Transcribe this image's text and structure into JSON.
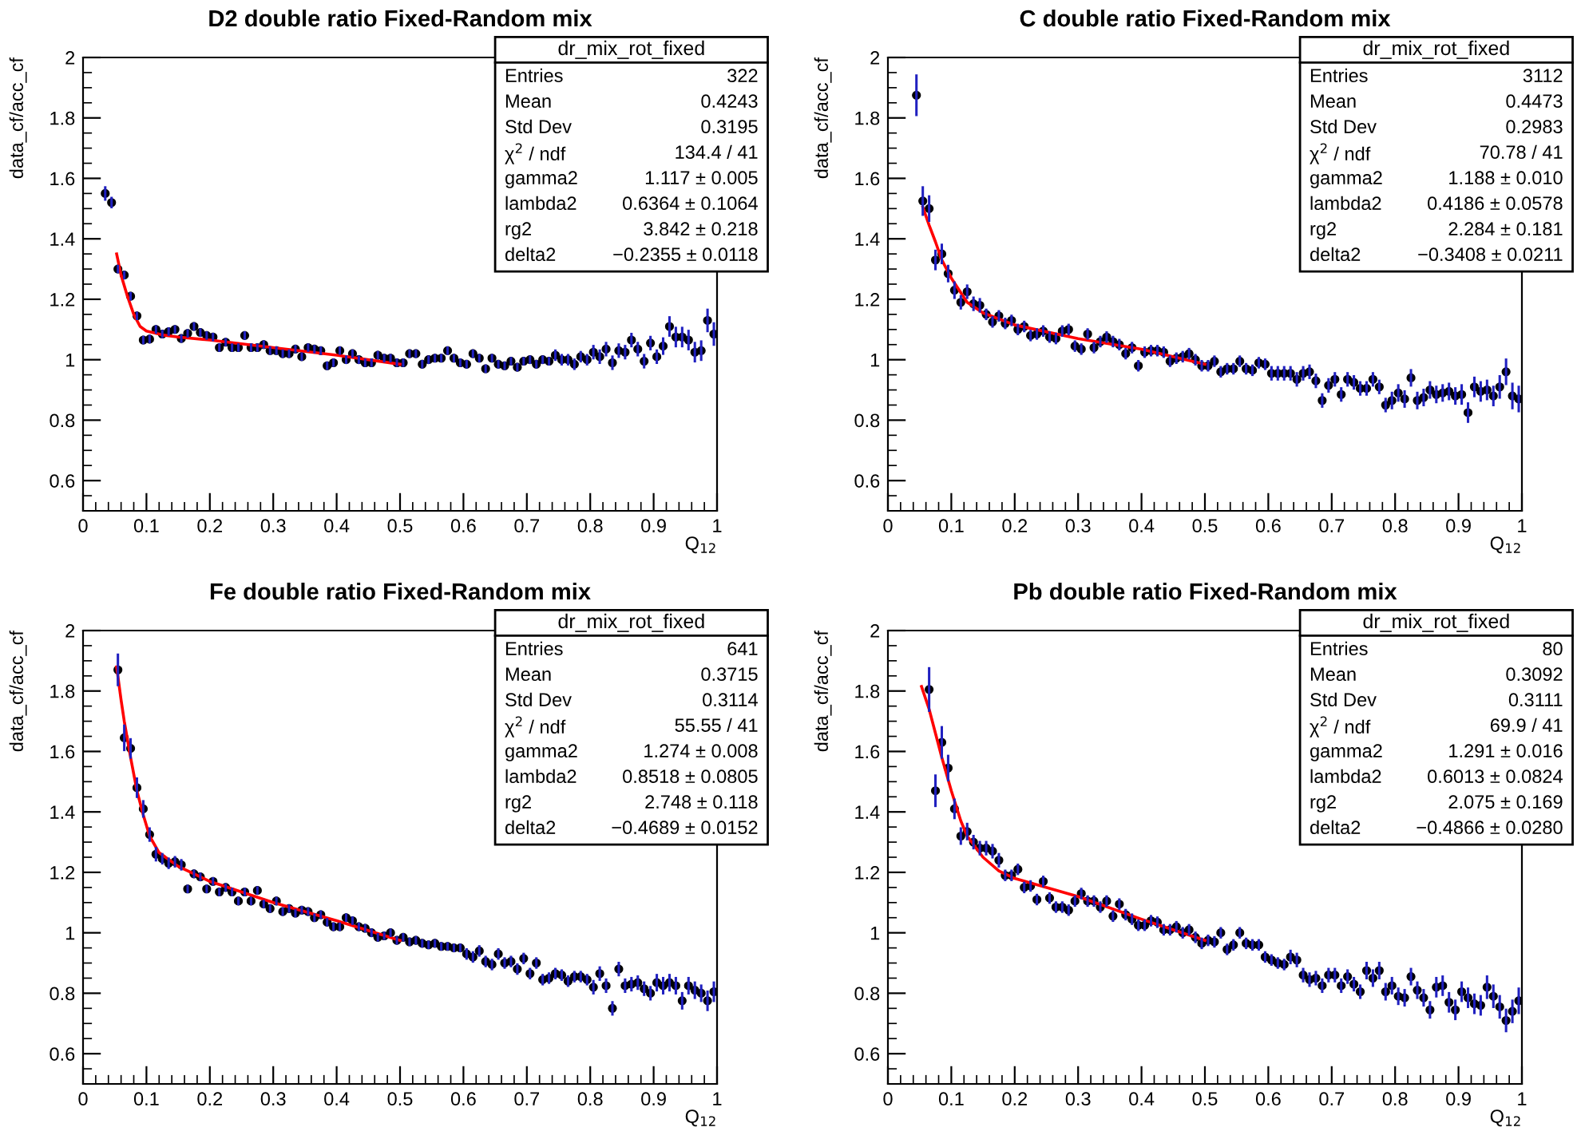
{
  "chart_data": [
    {
      "type": "scatter",
      "title": "D2 double ratio Fixed-Random mix",
      "xlabel": "Q$_{12}$",
      "ylabel": "data_cf/acc_cf",
      "xlim": [
        0,
        1
      ],
      "ylim": [
        0.5,
        2
      ],
      "xticks": [
        0,
        0.1,
        0.2,
        0.3,
        0.4,
        0.5,
        0.6,
        0.7,
        0.8,
        0.9,
        1
      ],
      "yticks": [
        0.6,
        0.8,
        1,
        1.2,
        1.4,
        1.6,
        1.8,
        2
      ],
      "annotations": [
        "dr_mix_rot_fixed",
        "Entries",
        "322",
        "Mean",
        "0.4243",
        "Std Dev",
        "0.3195",
        "χ$^{2}$ / ndf",
        "134.4 / 41",
        "gamma2",
        "1.117 ± 0.005",
        "lambda2",
        "0.6364 ± 0.1064",
        "rg2",
        "3.842 ± 0.218",
        "delta2",
        "−0.2355 ± 0.0118"
      ],
      "series": [
        {
          "type": "scatter",
          "marker": "circle",
          "color": "#000000",
          "x": [
            0.035,
            0.045,
            0.055,
            0.065,
            0.075,
            0.085,
            0.095,
            0.105,
            0.115,
            0.125,
            0.135,
            0.145,
            0.155,
            0.165,
            0.175,
            0.185,
            0.195,
            0.205,
            0.215,
            0.225,
            0.235,
            0.245,
            0.255,
            0.265,
            0.275,
            0.285,
            0.295,
            0.305,
            0.315,
            0.325,
            0.335,
            0.345,
            0.355,
            0.365,
            0.375,
            0.385,
            0.395,
            0.405,
            0.415,
            0.425,
            0.435,
            0.445,
            0.455,
            0.465,
            0.475,
            0.485,
            0.495,
            0.505,
            0.515,
            0.525,
            0.535,
            0.545,
            0.555,
            0.565,
            0.575,
            0.585,
            0.595,
            0.605,
            0.615,
            0.625,
            0.635,
            0.645,
            0.655,
            0.665,
            0.675,
            0.685,
            0.695,
            0.705,
            0.715,
            0.725,
            0.735,
            0.745,
            0.755,
            0.765,
            0.775,
            0.785,
            0.795,
            0.805,
            0.815,
            0.825,
            0.835,
            0.845,
            0.855,
            0.865,
            0.875,
            0.885,
            0.895,
            0.905,
            0.915,
            0.925,
            0.935,
            0.945,
            0.955,
            0.965,
            0.975,
            0.985,
            0.995
          ],
          "values": [
            1.55,
            1.52,
            1.3,
            1.28,
            1.21,
            1.145,
            1.065,
            1.068,
            1.1,
            1.085,
            1.093,
            1.1,
            1.07,
            1.087,
            1.11,
            1.09,
            1.08,
            1.075,
            1.04,
            1.058,
            1.04,
            1.04,
            1.08,
            1.04,
            1.04,
            1.05,
            1.03,
            1.03,
            1.02,
            1.02,
            1.035,
            1.01,
            1.04,
            1.035,
            1.03,
            0.98,
            0.99,
            1.03,
            1.0,
            1.02,
            1.0,
            0.99,
            0.99,
            1.015,
            1.005,
            1.005,
            0.99,
            0.99,
            1.02,
            1.02,
            0.985,
            1.0,
            1.005,
            1.005,
            1.03,
            1.005,
            0.99,
            0.985,
            1.02,
            1.005,
            0.97,
            1.005,
            0.985,
            0.98,
            0.995,
            0.975,
            0.995,
            1.0,
            0.985,
            1.0,
            0.995,
            1.015,
            1.0,
            1.0,
            0.985,
            1.01,
            1.0,
            1.025,
            1.01,
            1.035,
            0.99,
            1.03,
            1.025,
            1.065,
            1.035,
            0.995,
            1.055,
            1.01,
            1.045,
            1.11,
            1.075,
            1.075,
            1.065,
            1.025,
            1.03,
            1.13,
            1.085
          ],
          "errors": [
            0.02,
            0.015,
            0.01,
            0.01,
            0.01,
            0.01,
            0.01,
            0.01,
            0.01,
            0.01,
            0.01,
            0.01,
            0.01,
            0.01,
            0.01,
            0.01,
            0.01,
            0.01,
            0.01,
            0.01,
            0.01,
            0.01,
            0.01,
            0.01,
            0.01,
            0.01,
            0.01,
            0.01,
            0.01,
            0.01,
            0.01,
            0.01,
            0.01,
            0.01,
            0.01,
            0.01,
            0.01,
            0.01,
            0.01,
            0.01,
            0.01,
            0.01,
            0.01,
            0.01,
            0.01,
            0.01,
            0.01,
            0.01,
            0.01,
            0.01,
            0.01,
            0.01,
            0.01,
            0.01,
            0.01,
            0.01,
            0.01,
            0.01,
            0.01,
            0.01,
            0.01,
            0.01,
            0.01,
            0.01,
            0.01,
            0.01,
            0.01,
            0.01,
            0.01,
            0.01,
            0.01,
            0.015,
            0.015,
            0.015,
            0.015,
            0.015,
            0.015,
            0.02,
            0.02,
            0.02,
            0.02,
            0.02,
            0.02,
            0.02,
            0.02,
            0.02,
            0.02,
            0.02,
            0.025,
            0.03,
            0.03,
            0.03,
            0.03,
            0.03,
            0.03,
            0.035,
            0.035
          ]
        },
        {
          "type": "line",
          "color": "#ff0000",
          "x": [
            0.053,
            0.06,
            0.07,
            0.08,
            0.09,
            0.1,
            0.125,
            0.15,
            0.2,
            0.3,
            0.4,
            0.5
          ],
          "values": [
            1.35,
            1.28,
            1.21,
            1.15,
            1.11,
            1.095,
            1.082,
            1.075,
            1.065,
            1.04,
            1.015,
            0.985
          ]
        }
      ]
    },
    {
      "type": "scatter",
      "title": "C double ratio Fixed-Random mix",
      "xlabel": "Q$_{12}$",
      "ylabel": "data_cf/acc_cf",
      "xlim": [
        0,
        1
      ],
      "ylim": [
        0.5,
        2
      ],
      "xticks": [
        0,
        0.1,
        0.2,
        0.3,
        0.4,
        0.5,
        0.6,
        0.7,
        0.8,
        0.9,
        1
      ],
      "yticks": [
        0.6,
        0.8,
        1,
        1.2,
        1.4,
        1.6,
        1.8,
        2
      ],
      "annotations": [
        "dr_mix_rot_fixed",
        "Entries",
        "3112",
        "Mean",
        "0.4473",
        "Std Dev",
        "0.2983",
        "χ$^{2}$ / ndf",
        "70.78 / 41",
        "gamma2",
        "1.188 ± 0.010",
        "lambda2",
        "0.4186 ± 0.0578",
        "rg2",
        "2.284 ± 0.181",
        "delta2",
        "−0.3408 ± 0.0211"
      ],
      "series": [
        {
          "type": "scatter",
          "marker": "circle",
          "color": "#000000",
          "x": [
            0.045,
            0.055,
            0.065,
            0.075,
            0.085,
            0.095,
            0.105,
            0.115,
            0.125,
            0.135,
            0.145,
            0.155,
            0.165,
            0.175,
            0.185,
            0.195,
            0.205,
            0.215,
            0.225,
            0.235,
            0.245,
            0.255,
            0.265,
            0.275,
            0.285,
            0.295,
            0.305,
            0.315,
            0.325,
            0.335,
            0.345,
            0.355,
            0.365,
            0.375,
            0.385,
            0.395,
            0.405,
            0.415,
            0.425,
            0.435,
            0.445,
            0.455,
            0.465,
            0.475,
            0.485,
            0.495,
            0.505,
            0.515,
            0.525,
            0.535,
            0.545,
            0.555,
            0.565,
            0.575,
            0.585,
            0.595,
            0.605,
            0.615,
            0.625,
            0.635,
            0.645,
            0.655,
            0.665,
            0.675,
            0.685,
            0.695,
            0.705,
            0.715,
            0.725,
            0.735,
            0.745,
            0.755,
            0.765,
            0.775,
            0.785,
            0.795,
            0.805,
            0.815,
            0.825,
            0.835,
            0.845,
            0.855,
            0.865,
            0.875,
            0.885,
            0.895,
            0.905,
            0.915,
            0.925,
            0.935,
            0.945,
            0.955,
            0.965,
            0.975,
            0.985,
            0.995
          ],
          "values": [
            1.875,
            1.525,
            1.5,
            1.33,
            1.35,
            1.285,
            1.23,
            1.19,
            1.225,
            1.185,
            1.18,
            1.15,
            1.125,
            1.145,
            1.12,
            1.13,
            1.1,
            1.11,
            1.08,
            1.085,
            1.095,
            1.075,
            1.07,
            1.095,
            1.1,
            1.045,
            1.035,
            1.085,
            1.04,
            1.06,
            1.075,
            1.06,
            1.05,
            1.02,
            1.04,
            0.98,
            1.025,
            1.03,
            1.03,
            1.025,
            0.995,
            1.005,
            1.01,
            1.02,
            1.0,
            0.98,
            0.98,
            0.995,
            0.96,
            0.97,
            0.97,
            0.995,
            0.97,
            0.965,
            0.99,
            0.985,
            0.955,
            0.955,
            0.955,
            0.955,
            0.935,
            0.955,
            0.96,
            0.93,
            0.865,
            0.915,
            0.935,
            0.885,
            0.935,
            0.925,
            0.905,
            0.905,
            0.935,
            0.91,
            0.85,
            0.865,
            0.89,
            0.87,
            0.94,
            0.865,
            0.875,
            0.9,
            0.885,
            0.89,
            0.895,
            0.88,
            0.885,
            0.825,
            0.91,
            0.895,
            0.9,
            0.88,
            0.91,
            0.96,
            0.88,
            0.87
          ],
          "errors": [
            0.065,
            0.045,
            0.04,
            0.03,
            0.03,
            0.025,
            0.025,
            0.02,
            0.02,
            0.02,
            0.02,
            0.015,
            0.015,
            0.015,
            0.015,
            0.015,
            0.015,
            0.015,
            0.015,
            0.015,
            0.015,
            0.015,
            0.015,
            0.015,
            0.015,
            0.015,
            0.015,
            0.015,
            0.015,
            0.015,
            0.015,
            0.015,
            0.015,
            0.015,
            0.015,
            0.015,
            0.015,
            0.015,
            0.015,
            0.015,
            0.015,
            0.015,
            0.015,
            0.015,
            0.015,
            0.015,
            0.015,
            0.015,
            0.015,
            0.015,
            0.015,
            0.015,
            0.015,
            0.015,
            0.015,
            0.015,
            0.02,
            0.02,
            0.02,
            0.02,
            0.02,
            0.02,
            0.02,
            0.02,
            0.02,
            0.02,
            0.02,
            0.02,
            0.02,
            0.02,
            0.02,
            0.02,
            0.02,
            0.02,
            0.02,
            0.025,
            0.025,
            0.025,
            0.025,
            0.025,
            0.025,
            0.025,
            0.025,
            0.025,
            0.025,
            0.025,
            0.03,
            0.03,
            0.03,
            0.03,
            0.03,
            0.03,
            0.035,
            0.04,
            0.04,
            0.04
          ]
        },
        {
          "type": "line",
          "color": "#ff0000",
          "x": [
            0.055,
            0.065,
            0.075,
            0.085,
            0.1,
            0.125,
            0.15,
            0.2,
            0.3,
            0.4,
            0.5
          ],
          "values": [
            1.505,
            1.445,
            1.39,
            1.33,
            1.27,
            1.19,
            1.155,
            1.115,
            1.07,
            1.035,
            0.985
          ]
        }
      ]
    },
    {
      "type": "scatter",
      "title": "Fe double ratio Fixed-Random mix",
      "xlabel": "Q$_{12}$",
      "ylabel": "data_cf/acc_cf",
      "xlim": [
        0,
        1
      ],
      "ylim": [
        0.5,
        2
      ],
      "xticks": [
        0,
        0.1,
        0.2,
        0.3,
        0.4,
        0.5,
        0.6,
        0.7,
        0.8,
        0.9,
        1
      ],
      "yticks": [
        0.6,
        0.8,
        1,
        1.2,
        1.4,
        1.6,
        1.8,
        2
      ],
      "annotations": [
        "dr_mix_rot_fixed",
        "Entries",
        "641",
        "Mean",
        "0.3715",
        "Std Dev",
        "0.3114",
        "χ$^{2}$ / ndf",
        "55.55 / 41",
        "gamma2",
        "1.274 ± 0.008",
        "lambda2",
        "0.8518 ± 0.0805",
        "rg2",
        "2.748 ± 0.118",
        "delta2",
        "−0.4689 ± 0.0152"
      ],
      "series": [
        {
          "type": "scatter",
          "marker": "circle",
          "color": "#000000",
          "x": [
            0.055,
            0.065,
            0.075,
            0.085,
            0.095,
            0.105,
            0.115,
            0.125,
            0.135,
            0.145,
            0.155,
            0.165,
            0.175,
            0.185,
            0.195,
            0.205,
            0.215,
            0.225,
            0.235,
            0.245,
            0.255,
            0.265,
            0.275,
            0.285,
            0.295,
            0.305,
            0.315,
            0.325,
            0.335,
            0.345,
            0.355,
            0.365,
            0.375,
            0.385,
            0.395,
            0.405,
            0.415,
            0.425,
            0.435,
            0.445,
            0.455,
            0.465,
            0.475,
            0.485,
            0.495,
            0.505,
            0.515,
            0.525,
            0.535,
            0.545,
            0.555,
            0.565,
            0.575,
            0.585,
            0.595,
            0.605,
            0.615,
            0.625,
            0.635,
            0.645,
            0.655,
            0.665,
            0.675,
            0.685,
            0.695,
            0.705,
            0.715,
            0.725,
            0.735,
            0.745,
            0.755,
            0.765,
            0.775,
            0.785,
            0.795,
            0.805,
            0.815,
            0.825,
            0.835,
            0.845,
            0.855,
            0.865,
            0.875,
            0.885,
            0.895,
            0.905,
            0.915,
            0.925,
            0.935,
            0.945,
            0.955,
            0.965,
            0.975,
            0.985,
            0.995
          ],
          "values": [
            1.87,
            1.645,
            1.61,
            1.48,
            1.41,
            1.325,
            1.26,
            1.245,
            1.23,
            1.235,
            1.225,
            1.145,
            1.195,
            1.185,
            1.145,
            1.17,
            1.135,
            1.15,
            1.135,
            1.105,
            1.135,
            1.105,
            1.14,
            1.095,
            1.08,
            1.105,
            1.07,
            1.08,
            1.065,
            1.075,
            1.07,
            1.05,
            1.06,
            1.035,
            1.02,
            1.02,
            1.05,
            1.04,
            1.02,
            1.015,
            1.0,
            0.985,
            0.99,
            1.0,
            0.975,
            0.985,
            0.97,
            0.975,
            0.965,
            0.96,
            0.965,
            0.955,
            0.955,
            0.95,
            0.95,
            0.93,
            0.92,
            0.94,
            0.905,
            0.895,
            0.93,
            0.9,
            0.905,
            0.88,
            0.915,
            0.865,
            0.9,
            0.845,
            0.85,
            0.865,
            0.86,
            0.84,
            0.855,
            0.855,
            0.845,
            0.82,
            0.865,
            0.825,
            0.75,
            0.88,
            0.825,
            0.83,
            0.835,
            0.815,
            0.8,
            0.835,
            0.825,
            0.835,
            0.825,
            0.775,
            0.825,
            0.81,
            0.8,
            0.775,
            0.805
          ],
          "errors": [
            0.05,
            0.04,
            0.03,
            0.03,
            0.025,
            0.02,
            0.02,
            0.015,
            0.015,
            0.015,
            0.015,
            0.01,
            0.01,
            0.01,
            0.01,
            0.01,
            0.01,
            0.01,
            0.01,
            0.01,
            0.01,
            0.01,
            0.01,
            0.01,
            0.01,
            0.01,
            0.01,
            0.01,
            0.01,
            0.01,
            0.01,
            0.01,
            0.01,
            0.01,
            0.01,
            0.01,
            0.01,
            0.01,
            0.01,
            0.01,
            0.01,
            0.01,
            0.01,
            0.01,
            0.01,
            0.01,
            0.01,
            0.01,
            0.01,
            0.01,
            0.01,
            0.01,
            0.01,
            0.01,
            0.01,
            0.015,
            0.015,
            0.015,
            0.015,
            0.015,
            0.015,
            0.015,
            0.015,
            0.015,
            0.015,
            0.015,
            0.015,
            0.015,
            0.015,
            0.015,
            0.015,
            0.015,
            0.015,
            0.015,
            0.015,
            0.02,
            0.02,
            0.02,
            0.02,
            0.02,
            0.02,
            0.02,
            0.02,
            0.02,
            0.02,
            0.025,
            0.025,
            0.025,
            0.025,
            0.025,
            0.025,
            0.025,
            0.025,
            0.03,
            0.03
          ]
        },
        {
          "type": "line",
          "color": "#ff0000",
          "x": [
            0.053,
            0.06,
            0.065,
            0.075,
            0.085,
            0.095,
            0.105,
            0.12,
            0.15,
            0.2,
            0.3,
            0.4,
            0.5
          ],
          "values": [
            1.88,
            1.77,
            1.7,
            1.58,
            1.47,
            1.39,
            1.32,
            1.265,
            1.22,
            1.17,
            1.1,
            1.04,
            0.975
          ]
        }
      ]
    },
    {
      "type": "scatter",
      "title": "Pb double ratio Fixed-Random mix",
      "xlabel": "Q$_{12}$",
      "ylabel": "data_cf/acc_cf",
      "xlim": [
        0,
        1
      ],
      "ylim": [
        0.5,
        2
      ],
      "xticks": [
        0,
        0.1,
        0.2,
        0.3,
        0.4,
        0.5,
        0.6,
        0.7,
        0.8,
        0.9,
        1
      ],
      "yticks": [
        0.6,
        0.8,
        1,
        1.2,
        1.4,
        1.6,
        1.8,
        2
      ],
      "annotations": [
        "dr_mix_rot_fixed",
        "Entries",
        "80",
        "Mean",
        "0.3092",
        "Std Dev",
        "0.3111",
        "χ$^{2}$ / ndf",
        "69.9 / 41",
        "gamma2",
        "1.291 ± 0.016",
        "lambda2",
        "0.6013 ± 0.0824",
        "rg2",
        "2.075 ± 0.169",
        "delta2",
        "−0.4866 ± 0.0280"
      ],
      "series": [
        {
          "type": "scatter",
          "marker": "circle",
          "color": "#000000",
          "x": [
            0.065,
            0.075,
            0.085,
            0.095,
            0.105,
            0.115,
            0.125,
            0.135,
            0.145,
            0.155,
            0.165,
            0.175,
            0.185,
            0.195,
            0.205,
            0.215,
            0.225,
            0.235,
            0.245,
            0.255,
            0.265,
            0.275,
            0.285,
            0.295,
            0.305,
            0.315,
            0.325,
            0.335,
            0.345,
            0.355,
            0.365,
            0.375,
            0.385,
            0.395,
            0.405,
            0.415,
            0.425,
            0.435,
            0.445,
            0.455,
            0.465,
            0.475,
            0.485,
            0.495,
            0.505,
            0.515,
            0.525,
            0.535,
            0.545,
            0.555,
            0.565,
            0.575,
            0.585,
            0.595,
            0.605,
            0.615,
            0.625,
            0.635,
            0.645,
            0.655,
            0.665,
            0.675,
            0.685,
            0.695,
            0.705,
            0.715,
            0.725,
            0.735,
            0.745,
            0.755,
            0.765,
            0.775,
            0.785,
            0.795,
            0.805,
            0.815,
            0.825,
            0.835,
            0.845,
            0.855,
            0.865,
            0.875,
            0.885,
            0.895,
            0.905,
            0.915,
            0.925,
            0.935,
            0.945,
            0.955,
            0.965,
            0.975,
            0.985,
            0.995
          ],
          "values": [
            1.805,
            1.47,
            1.63,
            1.545,
            1.41,
            1.32,
            1.335,
            1.3,
            1.28,
            1.28,
            1.27,
            1.24,
            1.19,
            1.19,
            1.21,
            1.15,
            1.155,
            1.11,
            1.17,
            1.115,
            1.085,
            1.085,
            1.075,
            1.105,
            1.13,
            1.105,
            1.105,
            1.085,
            1.105,
            1.055,
            1.095,
            1.06,
            1.045,
            1.025,
            1.025,
            1.04,
            1.035,
            1.01,
            1.01,
            1.02,
            1.0,
            1.01,
            0.985,
            0.965,
            0.975,
            0.97,
            1.0,
            0.945,
            0.96,
            1.0,
            0.965,
            0.96,
            0.96,
            0.92,
            0.91,
            0.9,
            0.895,
            0.92,
            0.91,
            0.86,
            0.845,
            0.85,
            0.825,
            0.86,
            0.86,
            0.825,
            0.855,
            0.83,
            0.805,
            0.875,
            0.85,
            0.875,
            0.805,
            0.825,
            0.79,
            0.785,
            0.855,
            0.81,
            0.785,
            0.745,
            0.82,
            0.825,
            0.77,
            0.745,
            0.805,
            0.785,
            0.765,
            0.76,
            0.82,
            0.79,
            0.755,
            0.71,
            0.74,
            0.775
          ],
          "errors": [
            0.07,
            0.05,
            0.05,
            0.04,
            0.03,
            0.025,
            0.025,
            0.02,
            0.02,
            0.02,
            0.02,
            0.02,
            0.015,
            0.015,
            0.015,
            0.015,
            0.015,
            0.015,
            0.015,
            0.015,
            0.015,
            0.015,
            0.015,
            0.015,
            0.015,
            0.015,
            0.015,
            0.015,
            0.015,
            0.015,
            0.015,
            0.015,
            0.015,
            0.015,
            0.015,
            0.015,
            0.015,
            0.015,
            0.015,
            0.015,
            0.015,
            0.015,
            0.015,
            0.015,
            0.015,
            0.015,
            0.015,
            0.015,
            0.015,
            0.015,
            0.015,
            0.015,
            0.015,
            0.015,
            0.015,
            0.015,
            0.015,
            0.02,
            0.02,
            0.02,
            0.02,
            0.02,
            0.02,
            0.02,
            0.02,
            0.02,
            0.02,
            0.02,
            0.02,
            0.025,
            0.025,
            0.025,
            0.025,
            0.025,
            0.025,
            0.025,
            0.025,
            0.025,
            0.025,
            0.025,
            0.03,
            0.03,
            0.03,
            0.03,
            0.03,
            0.03,
            0.03,
            0.03,
            0.035,
            0.035,
            0.035,
            0.035,
            0.035,
            0.04
          ]
        },
        {
          "type": "line",
          "color": "#ff0000",
          "x": [
            0.053,
            0.065,
            0.075,
            0.085,
            0.1,
            0.115,
            0.125,
            0.15,
            0.175,
            0.2,
            0.3,
            0.4,
            0.5
          ],
          "values": [
            1.815,
            1.74,
            1.66,
            1.58,
            1.47,
            1.37,
            1.32,
            1.25,
            1.205,
            1.18,
            1.12,
            1.045,
            0.975
          ]
        }
      ]
    }
  ]
}
